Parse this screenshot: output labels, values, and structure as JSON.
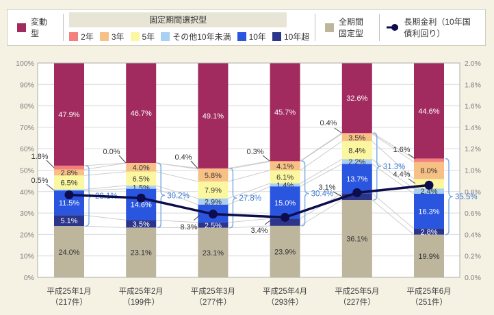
{
  "colors": {
    "background": "#F5F1E3",
    "plot_bg": "#FFFFFF",
    "plot_border": "#ADADAD",
    "grid": "#D9D9D9",
    "connector": "#CCCCCC",
    "axis_text": "#808080",
    "category_text": "#3F3F3F",
    "callout_text": "#333333",
    "leader_line": "#444444",
    "bracket": "#7FAEE3",
    "bracket_text": "#3B7BD4"
  },
  "legend": {
    "variable": {
      "label": "変動型",
      "color": "#A12A5E"
    },
    "fixed_group": {
      "header": "固定期間選択型",
      "items": [
        {
          "label": "2年",
          "color": "#F4807D"
        },
        {
          "label": "3年",
          "color": "#F7C185"
        },
        {
          "label": "5年",
          "color": "#FBF7A0"
        },
        {
          "label": "その他10年未満",
          "color": "#A9CFF1"
        },
        {
          "label": "10年",
          "color": "#2A55DF"
        },
        {
          "label": "10年超",
          "color": "#2B3589"
        }
      ]
    },
    "full_fixed": {
      "label": "全期間固定型",
      "color": "#BDB59C"
    },
    "line": {
      "label": "長期金利（10年国債利回り）",
      "color": "#0D0D4D"
    }
  },
  "chart_data": {
    "type": "bar",
    "subtype": "stacked-percent-with-line",
    "categories": [
      {
        "month": "平成25年1月",
        "count": "（217件）"
      },
      {
        "month": "平成25年2月",
        "count": "（199件）"
      },
      {
        "month": "平成25年3月",
        "count": "（277件）"
      },
      {
        "month": "平成25年4月",
        "count": "（293件）"
      },
      {
        "month": "平成25年5月",
        "count": "（227件）"
      },
      {
        "month": "平成25年6月",
        "count": "（251件）"
      }
    ],
    "series": [
      {
        "name": "変動型",
        "color": "#A12A5E",
        "label_color": "#FFFFFF",
        "values": [
          47.9,
          46.7,
          49.1,
          45.7,
          32.6,
          44.6
        ]
      },
      {
        "name": "2年",
        "color": "#F4807D",
        "label_color": "#333333",
        "values": [
          1.8,
          0.0,
          0.4,
          0.3,
          0.4,
          1.6
        ]
      },
      {
        "name": "3年",
        "color": "#F7C185",
        "label_color": "#333333",
        "values": [
          2.8,
          4.0,
          5.8,
          4.1,
          3.5,
          8.0
        ]
      },
      {
        "name": "5年",
        "color": "#FBF7A0",
        "label_color": "#333333",
        "values": [
          6.5,
          6.5,
          7.9,
          6.1,
          8.4,
          4.4
        ]
      },
      {
        "name": "その他10年未満",
        "color": "#A9CFF1",
        "label_color": "#333333",
        "values": [
          0.5,
          1.5,
          2.9,
          1.4,
          2.2,
          2.4
        ]
      },
      {
        "name": "10年",
        "color": "#2A55DF",
        "label_color": "#FFFFFF",
        "values": [
          11.5,
          14.6,
          8.3,
          15.0,
          13.7,
          16.3
        ]
      },
      {
        "name": "10年超",
        "color": "#2B3589",
        "label_color": "#FFFFFF",
        "values": [
          5.1,
          3.5,
          2.5,
          3.4,
          3.1,
          2.8
        ]
      },
      {
        "name": "全期間固定型",
        "color": "#BDB59C",
        "label_color": "#333333",
        "values": [
          24.0,
          23.1,
          23.1,
          23.9,
          36.1,
          19.9
        ]
      }
    ],
    "fixed_period_totals": [
      28.1,
      30.2,
      27.8,
      30.4,
      31.3,
      35.5
    ],
    "line_series": {
      "name": "長期金利（10年国債利回り）",
      "color": "#0D0D4D",
      "values": [
        0.77,
        0.74,
        0.59,
        0.56,
        0.79,
        0.86
      ]
    },
    "left_axis": {
      "min": 0,
      "max": 100,
      "step": 10,
      "suffix": "%"
    },
    "right_axis": {
      "min": 0,
      "max": 2.0,
      "step": 0.2,
      "suffix": "%"
    },
    "grid": true,
    "legend_position": "top"
  }
}
